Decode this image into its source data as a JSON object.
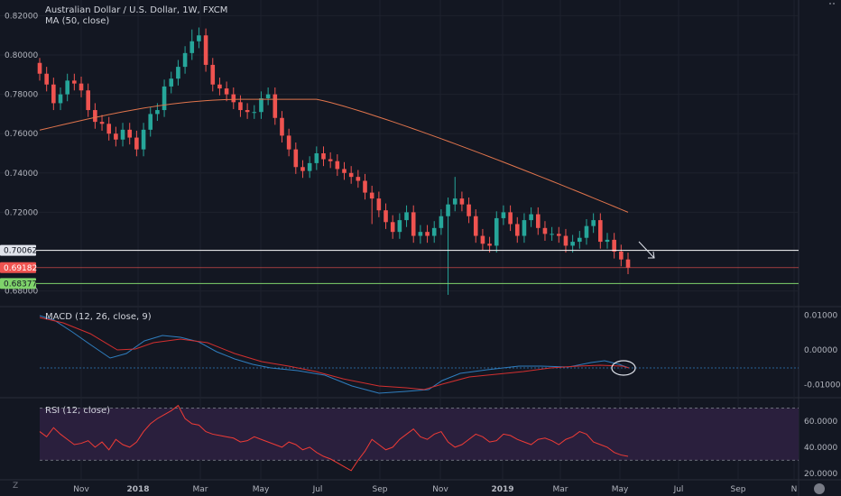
{
  "chart_data": {
    "type": "candlestick",
    "title": "Australian Dollar / U.S. Dollar, 1W, FXCM",
    "overlay_label": "MA (50, close)",
    "x_ticks": [
      "Nov",
      "2018",
      "Mar",
      "May",
      "Jul",
      "Sep",
      "Nov",
      "2019",
      "Mar",
      "May",
      "Jul",
      "Sep",
      "N"
    ],
    "price_axis": {
      "ticks": [
        "0.82000",
        "0.80000",
        "0.78000",
        "0.76000",
        "0.74000",
        "0.72000",
        "0.68000"
      ],
      "ylim": [
        0.672,
        0.828
      ]
    },
    "levels": [
      {
        "label": "0.70062",
        "value": 0.70062,
        "color": "#ffffff",
        "tag_bg": "#e0e3eb",
        "tag_fg": "#131722"
      },
      {
        "label": "0.69182",
        "value": 0.69182,
        "color": "#ef5350",
        "tag_bg": "#ef5350",
        "tag_fg": "#ffffff"
      },
      {
        "label": "0.68377",
        "value": 0.68377,
        "color": "#7fd36b",
        "tag_bg": "#7fd36b",
        "tag_fg": "#131722"
      }
    ],
    "candles_close": [
      0.7905,
      0.785,
      0.7755,
      0.78,
      0.787,
      0.7855,
      0.782,
      0.772,
      0.766,
      0.765,
      0.76,
      0.757,
      0.762,
      0.758,
      0.752,
      0.762,
      0.77,
      0.772,
      0.784,
      0.788,
      0.794,
      0.801,
      0.807,
      0.81,
      0.795,
      0.785,
      0.783,
      0.78,
      0.776,
      0.772,
      0.771,
      0.771,
      0.778,
      0.78,
      0.768,
      0.759,
      0.752,
      0.743,
      0.741,
      0.745,
      0.75,
      0.747,
      0.746,
      0.742,
      0.74,
      0.738,
      0.736,
      0.73,
      0.727,
      0.721,
      0.715,
      0.71,
      0.716,
      0.72,
      0.708,
      0.71,
      0.708,
      0.712,
      0.718,
      0.724,
      0.727,
      0.724,
      0.718,
      0.708,
      0.704,
      0.703,
      0.717,
      0.72,
      0.714,
      0.708,
      0.716,
      0.719,
      0.712,
      0.709,
      0.709,
      0.708,
      0.703,
      0.705,
      0.707,
      0.713,
      0.716,
      0.705,
      0.706,
      0.7,
      0.696,
      0.692
    ],
    "ma_label": "MA (50, close)",
    "macd": {
      "label": "MACD (12, 26, close, 9)",
      "ticks": [
        "0.01000",
        "0.00000",
        "-0.01000"
      ],
      "ylim": [
        -0.0138,
        0.0125
      ]
    },
    "rsi": {
      "label": "RSI (12, close)",
      "ticks": [
        "60.0000",
        "40.0000",
        "20.0000"
      ],
      "ylim": [
        15,
        78
      ],
      "band": [
        30,
        70
      ]
    },
    "colors": {
      "up": "#26a69a",
      "down": "#ef5350",
      "ma": "#e0744c",
      "macd_line": "#2f7ebf",
      "signal_line": "#d32f2f",
      "rsi_line": "#ef3b36",
      "rsi_band": "#2a1f3d"
    }
  }
}
